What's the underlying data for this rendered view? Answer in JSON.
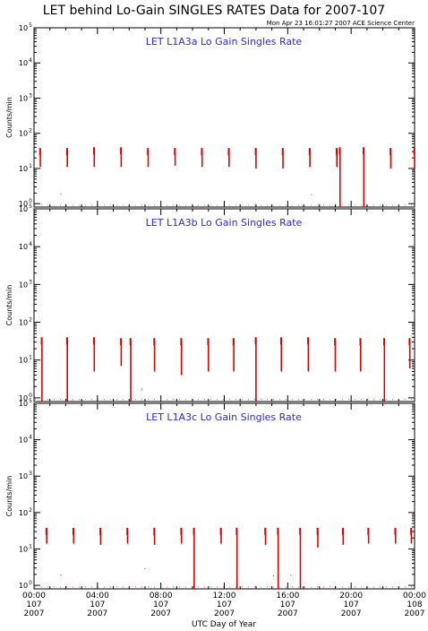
{
  "title": "LET behind Lo-Gain SINGLES RATES Data for 2007-107",
  "timestamp": "Mon Apr 23 16:01:27 2007 ACE Science Center",
  "xlabel": "UTC Day of Year",
  "colors": {
    "data": "#e00000",
    "panel_title": "#2a2ae8",
    "axes": "#000000"
  },
  "x_ticks": [
    {
      "hour": 0,
      "time": "00:00",
      "day": "107",
      "year": "2007"
    },
    {
      "hour": 4,
      "time": "04:00",
      "day": "107",
      "year": "2007"
    },
    {
      "hour": 8,
      "time": "08:00",
      "day": "107",
      "year": "2007"
    },
    {
      "hour": 12,
      "time": "12:00",
      "day": "107",
      "year": "2007"
    },
    {
      "hour": 16,
      "time": "16:00",
      "day": "107",
      "year": "2007"
    },
    {
      "hour": 20,
      "time": "20:00",
      "day": "107",
      "year": "2007"
    },
    {
      "hour": 24,
      "time": "00:00",
      "day": "108",
      "year": "2007"
    }
  ],
  "y_ticks": [
    {
      "value": 1,
      "base": "10",
      "exp": "0"
    },
    {
      "value": 10,
      "base": "10",
      "exp": "1"
    },
    {
      "value": 100,
      "base": "10",
      "exp": "2"
    },
    {
      "value": 1000,
      "base": "10",
      "exp": "3"
    },
    {
      "value": 10000,
      "base": "10",
      "exp": "4"
    },
    {
      "value": 100000,
      "base": "10",
      "exp": "5"
    }
  ],
  "chart_data": [
    {
      "type": "line",
      "title": "LET L1A3a Lo Gain Singles Rate",
      "ylabel": "Counts/min",
      "xlim": [
        0,
        24
      ],
      "ylim": [
        0.8,
        100000
      ],
      "yscale": "log",
      "grid": false,
      "bursts": [
        {
          "x": 0.4,
          "top": 38,
          "bottom": 11
        },
        {
          "x": 2.1,
          "top": 38,
          "bottom": 11
        },
        {
          "x": 3.8,
          "top": 40,
          "bottom": 11
        },
        {
          "x": 5.5,
          "top": 40,
          "bottom": 11
        },
        {
          "x": 7.2,
          "top": 38,
          "bottom": 11
        },
        {
          "x": 8.9,
          "top": 38,
          "bottom": 12
        },
        {
          "x": 10.6,
          "top": 38,
          "bottom": 11
        },
        {
          "x": 12.3,
          "top": 38,
          "bottom": 11
        },
        {
          "x": 14.0,
          "top": 38,
          "bottom": 10
        },
        {
          "x": 15.7,
          "top": 38,
          "bottom": 10
        },
        {
          "x": 17.4,
          "top": 38,
          "bottom": 11
        },
        {
          "x": 19.1,
          "top": 38,
          "bottom": 11
        },
        {
          "x": 19.3,
          "top": 40,
          "bottom": 0.8
        },
        {
          "x": 20.8,
          "top": 40,
          "bottom": 0.8
        },
        {
          "x": 22.5,
          "top": 38,
          "bottom": 10
        },
        {
          "x": 24.0,
          "top": 38,
          "bottom": 10
        }
      ],
      "dots": [
        {
          "x": 1.7,
          "y": 1.9
        },
        {
          "x": 17.5,
          "y": 1.8
        }
      ]
    },
    {
      "type": "line",
      "title": "LET L1A3b Lo Gain Singles Rate",
      "ylabel": "Counts/min",
      "xlim": [
        0,
        24
      ],
      "ylim": [
        0.8,
        100000
      ],
      "yscale": "log",
      "grid": false,
      "bursts": [
        {
          "x": 0.5,
          "top": 40,
          "bottom": 0.8
        },
        {
          "x": 2.1,
          "top": 40,
          "bottom": 0.8
        },
        {
          "x": 3.8,
          "top": 40,
          "bottom": 5
        },
        {
          "x": 5.5,
          "top": 38,
          "bottom": 7
        },
        {
          "x": 6.1,
          "top": 38,
          "bottom": 0.8
        },
        {
          "x": 7.6,
          "top": 38,
          "bottom": 5
        },
        {
          "x": 9.3,
          "top": 38,
          "bottom": 4
        },
        {
          "x": 11.0,
          "top": 38,
          "bottom": 5
        },
        {
          "x": 12.6,
          "top": 38,
          "bottom": 5
        },
        {
          "x": 14.0,
          "top": 40,
          "bottom": 0.8
        },
        {
          "x": 15.6,
          "top": 40,
          "bottom": 5
        },
        {
          "x": 17.3,
          "top": 40,
          "bottom": 5
        },
        {
          "x": 19.0,
          "top": 38,
          "bottom": 5
        },
        {
          "x": 20.6,
          "top": 38,
          "bottom": 5
        },
        {
          "x": 22.1,
          "top": 38,
          "bottom": 0.8
        },
        {
          "x": 23.7,
          "top": 38,
          "bottom": 6
        }
      ],
      "dots": [
        {
          "x": 6.8,
          "y": 1.7
        }
      ]
    },
    {
      "type": "line",
      "title": "LET L1A3c Lo Gain Singles Rate",
      "ylabel": "Counts/min",
      "xlim": [
        0,
        24
      ],
      "ylim": [
        0.8,
        100000
      ],
      "yscale": "log",
      "grid": false,
      "bursts": [
        {
          "x": 0.8,
          "top": 38,
          "bottom": 14
        },
        {
          "x": 2.5,
          "top": 38,
          "bottom": 14
        },
        {
          "x": 4.2,
          "top": 38,
          "bottom": 13
        },
        {
          "x": 5.9,
          "top": 38,
          "bottom": 14
        },
        {
          "x": 7.6,
          "top": 38,
          "bottom": 13
        },
        {
          "x": 9.3,
          "top": 38,
          "bottom": 14
        },
        {
          "x": 10.1,
          "top": 38,
          "bottom": 0.8
        },
        {
          "x": 11.8,
          "top": 38,
          "bottom": 14
        },
        {
          "x": 12.8,
          "top": 38,
          "bottom": 0.8
        },
        {
          "x": 14.6,
          "top": 38,
          "bottom": 13
        },
        {
          "x": 15.4,
          "top": 38,
          "bottom": 0.8
        },
        {
          "x": 16.8,
          "top": 38,
          "bottom": 0.8
        },
        {
          "x": 17.9,
          "top": 38,
          "bottom": 11
        },
        {
          "x": 19.5,
          "top": 38,
          "bottom": 13
        },
        {
          "x": 21.1,
          "top": 38,
          "bottom": 14
        },
        {
          "x": 22.8,
          "top": 38,
          "bottom": 14
        },
        {
          "x": 23.8,
          "top": 38,
          "bottom": 14
        }
      ],
      "dots": [
        {
          "x": 1.7,
          "y": 1.9
        },
        {
          "x": 7.0,
          "y": 2.9
        },
        {
          "x": 15.1,
          "y": 1.8
        },
        {
          "x": 16.2,
          "y": 1.9
        }
      ]
    }
  ]
}
